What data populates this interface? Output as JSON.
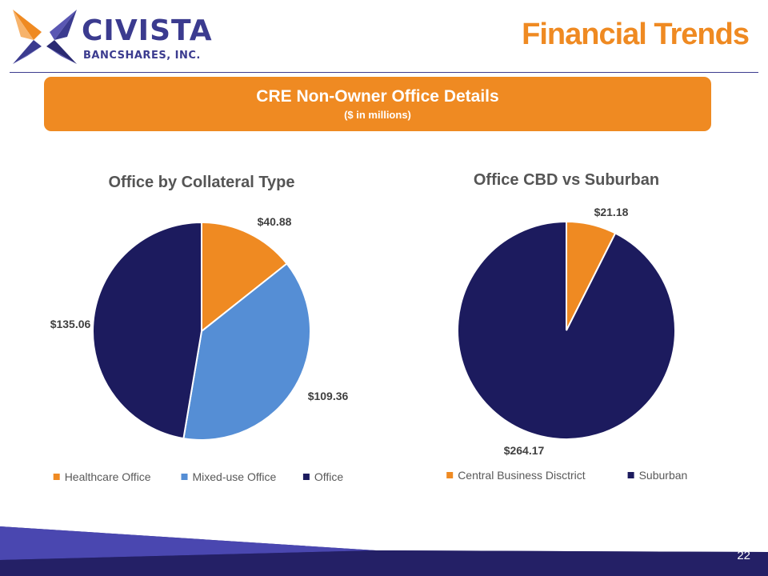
{
  "header": {
    "logo_name": "CIVISTA",
    "logo_sub": "BANCSHARES, INC.",
    "page_title": "Financial Trends"
  },
  "banner": {
    "title": "CRE Non-Owner Office Details",
    "subtitle": "($ in millions)"
  },
  "chart_data": [
    {
      "type": "pie",
      "title": "Office by Collateral Type",
      "categories": [
        "Healthcare Office",
        "Mixed-use Office",
        "Office"
      ],
      "values": [
        40.88,
        109.36,
        135.06
      ],
      "labels": [
        "$40.88",
        "$109.36",
        "$135.06"
      ],
      "colors": [
        "#ef8a22",
        "#558ed5",
        "#1c1b5e"
      ],
      "legend": "bottom"
    },
    {
      "type": "pie",
      "title": "Office CBD vs Suburban",
      "categories": [
        "Central Business Disctrict",
        "Suburban"
      ],
      "values": [
        21.18,
        264.17
      ],
      "labels": [
        "$21.18",
        "$264.17"
      ],
      "colors": [
        "#ef8a22",
        "#1c1b5e"
      ],
      "legend": "bottom"
    }
  ],
  "footer": {
    "page_number": "22"
  },
  "colors": {
    "accent": "#ef8a22",
    "brand": "#3b3b8f",
    "navy": "#1c1b5e"
  }
}
